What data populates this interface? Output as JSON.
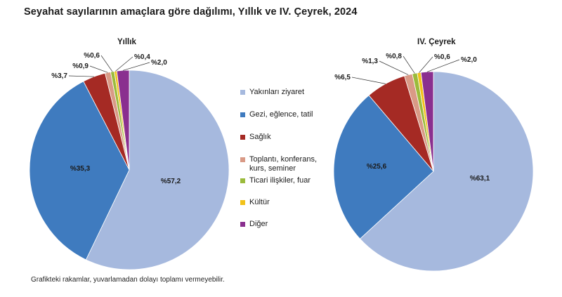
{
  "title": "Seyahat sayılarının amaçlara göre dağılımı, Yıllık ve IV. Çeyrek, 2024",
  "footnote": "Grafikteki rakamlar, yuvarlamadan dolayı toplamı vermeyebilir.",
  "chart_data": [
    {
      "type": "pie",
      "title": "Yıllık",
      "categories": [
        "Yakınları ziyaret",
        "Gezi, eğlence, tatil",
        "Sağlık",
        "Toplantı, konferans, kurs, seminer",
        "Ticari ilişkiler, fuar",
        "Kültür",
        "Diğer"
      ],
      "values": [
        57.2,
        35.3,
        3.7,
        0.9,
        0.6,
        0.4,
        2.0
      ],
      "labels": [
        "%57,2",
        "%35,3",
        "%3,7",
        "%0,9",
        "%0,6",
        "%0,4",
        "%2,0"
      ],
      "legend": "center"
    },
    {
      "type": "pie",
      "title": "IV. Çeyrek",
      "categories": [
        "Yakınları ziyaret",
        "Gezi, eğlence, tatil",
        "Sağlık",
        "Toplantı, konferans, kurs, seminer",
        "Ticari ilişkiler, fuar",
        "Kültür",
        "Diğer"
      ],
      "values": [
        63.1,
        25.6,
        6.5,
        1.3,
        0.8,
        0.6,
        2.0
      ],
      "labels": [
        "%63,1",
        "%25,6",
        "%6,5",
        "%1,3",
        "%0,8",
        "%0,6",
        "%2,0"
      ],
      "legend": "center"
    }
  ],
  "legend": {
    "items": [
      {
        "label": "Yakınları ziyaret",
        "color": "#a6b9de"
      },
      {
        "label": "Gezi, eğlence, tatil",
        "color": "#3f7bbf"
      },
      {
        "label": "Sağlık",
        "color": "#a52a24"
      },
      {
        "label": "Toplantı, konferans, kurs, seminer",
        "color": "#d99a86"
      },
      {
        "label": "Ticari ilişkiler, fuar",
        "color": "#9bbb3c"
      },
      {
        "label": "Kültür",
        "color": "#f2c21a"
      },
      {
        "label": "Diğer",
        "color": "#8a2f8f"
      }
    ]
  }
}
